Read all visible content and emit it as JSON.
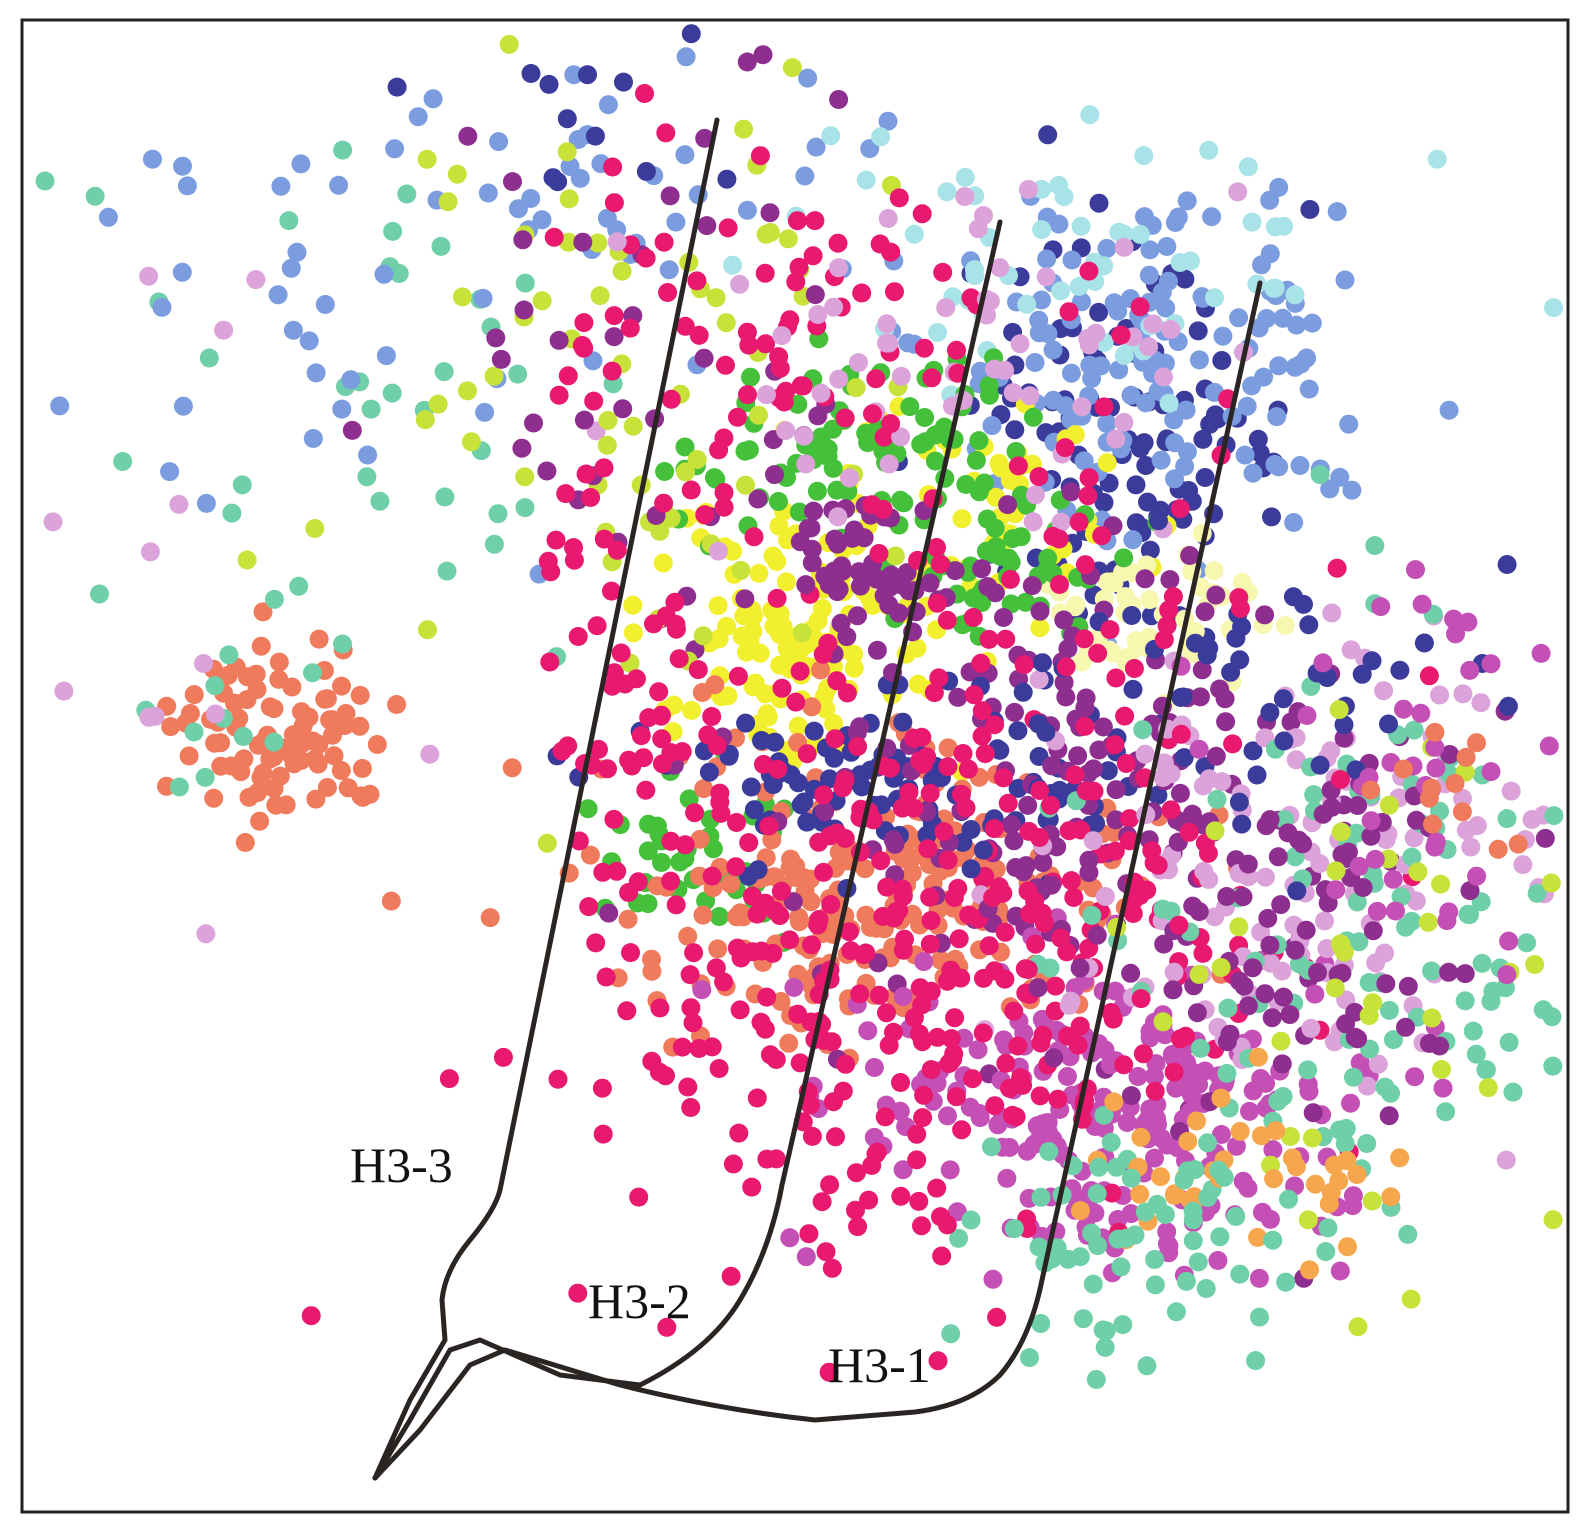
{
  "wells": [
    {
      "label": "H3-1"
    },
    {
      "label": "H3-2"
    },
    {
      "label": "H3-3"
    }
  ]
}
